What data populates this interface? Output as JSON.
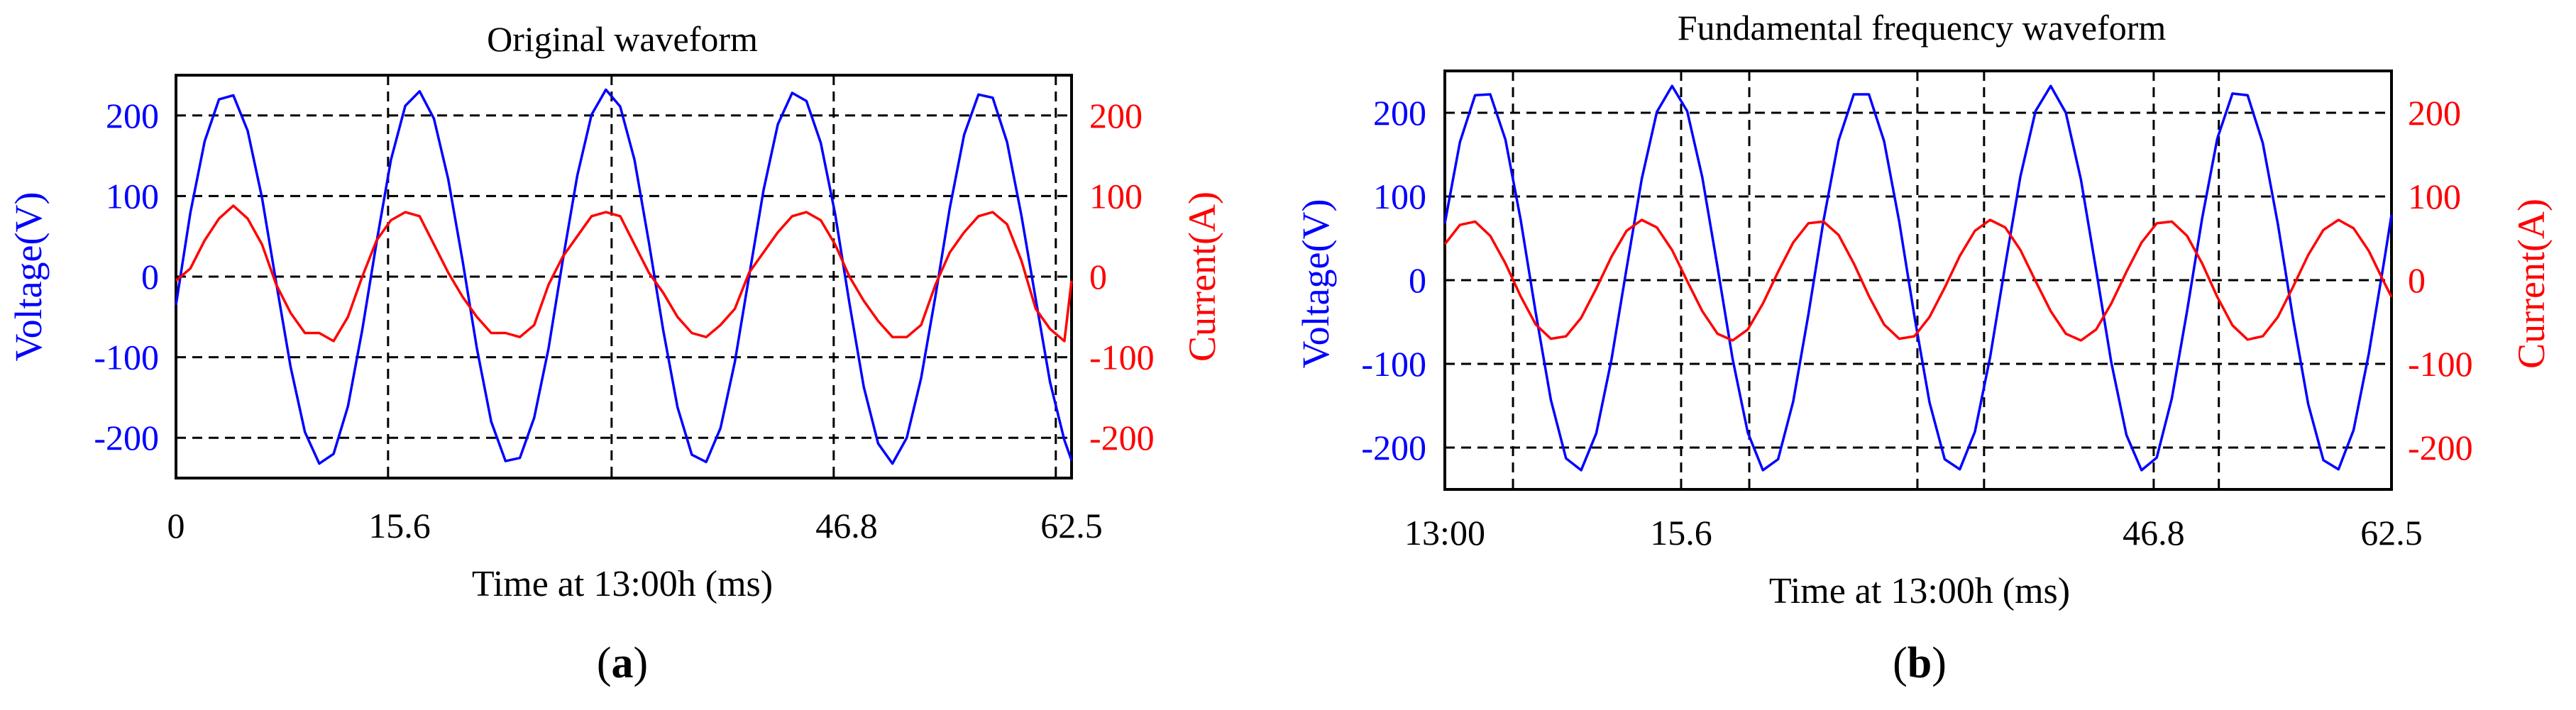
{
  "colors": {
    "voltage": "#0000ff",
    "current": "#ff0000",
    "axis": "#000000",
    "grid": "#000000"
  },
  "chart_data": [
    {
      "type": "line",
      "panel_label": "a",
      "title": "Original waveform",
      "xlabel": "Time at 13:00h (ms)",
      "ylabel_left": "Voltage(V)",
      "ylabel_right": "Current(A)",
      "xlim": [
        0,
        62.5
      ],
      "ylim_left": [
        -250,
        250
      ],
      "ylim_right": [
        -250,
        250
      ],
      "x_ticks": [
        {
          "value": 0,
          "label": "0"
        },
        {
          "value": 15.6,
          "label": "15.6"
        },
        {
          "value": 46.8,
          "label": "46.8"
        },
        {
          "value": 62.5,
          "label": "62.5"
        }
      ],
      "x_gridlines": [
        14.8,
        30.4,
        45.9,
        61.4
      ],
      "y_ticks_left": [
        {
          "value": 200,
          "label": "200"
        },
        {
          "value": 100,
          "label": "100"
        },
        {
          "value": 0,
          "label": "0"
        },
        {
          "value": -100,
          "label": "-100"
        },
        {
          "value": -200,
          "label": "-200"
        }
      ],
      "y_ticks_right": [
        {
          "value": 200,
          "label": "200"
        },
        {
          "value": 100,
          "label": "100"
        },
        {
          "value": 0,
          "label": "0"
        },
        {
          "value": -100,
          "label": "-100"
        },
        {
          "value": -200,
          "label": "-200"
        }
      ],
      "grid": "dashed",
      "series": [
        {
          "name": "Voltage",
          "axis": "left",
          "x": [
            0,
            1.0,
            2.0,
            3.0,
            4.0,
            5.0,
            6.0,
            7.0,
            8.0,
            9.0,
            10.0,
            11.0,
            12.0,
            13.0,
            14.0,
            15.0,
            16.0,
            17.0,
            18.0,
            19.0,
            20.0,
            21.0,
            22.0,
            23.0,
            24.0,
            25.0,
            26.0,
            27.0,
            28.0,
            29.0,
            30.0,
            31.0,
            32.0,
            33.0,
            34.0,
            35.0,
            36.0,
            37.0,
            38.0,
            39.0,
            40.0,
            41.0,
            42.0,
            43.0,
            44.0,
            45.0,
            46.0,
            47.0,
            48.0,
            49.0,
            50.0,
            51.0,
            52.0,
            53.0,
            54.0,
            55.0,
            56.0,
            57.0,
            58.0,
            59.0,
            60.0,
            61.0,
            62.0,
            62.5
          ],
          "values": [
            -35,
            79,
            168,
            220,
            225,
            181,
            98,
            -8,
            -112,
            -193,
            -232,
            -220,
            -161,
            -66,
            43,
            145,
            212,
            230,
            196,
            121,
            20,
            -89,
            -180,
            -229,
            -225,
            -175,
            -89,
            21,
            125,
            201,
            232,
            211,
            145,
            43,
            -66,
            -162,
            -221,
            -230,
            -188,
            -106,
            1,
            107,
            189,
            228,
            218,
            166,
            78,
            -33,
            -137,
            -207,
            -232,
            -200,
            -126,
            -24,
            85,
            176,
            226,
            222,
            167,
            76,
            -28,
            -131,
            -203,
            -228
          ]
        },
        {
          "name": "Current",
          "axis": "right",
          "x": [
            0,
            1.0,
            2.0,
            3.0,
            4.0,
            5.0,
            6.0,
            7.0,
            8.0,
            9.0,
            10.0,
            11.0,
            12.0,
            13.0,
            14.0,
            15.0,
            16.0,
            17.0,
            18.0,
            19.0,
            20.0,
            21.0,
            22.0,
            23.0,
            24.0,
            25.0,
            26.0,
            27.0,
            28.0,
            29.0,
            30.0,
            31.0,
            32.0,
            33.0,
            34.0,
            35.0,
            36.0,
            37.0,
            38.0,
            39.0,
            40.0,
            41.0,
            42.0,
            43.0,
            44.0,
            45.0,
            46.0,
            47.0,
            48.0,
            49.0,
            50.0,
            51.0,
            52.0,
            53.0,
            54.0,
            55.0,
            56.0,
            57.0,
            58.0,
            59.0,
            60.0,
            61.0,
            62.0,
            62.5
          ],
          "values": [
            -5,
            10,
            45,
            72,
            88,
            72,
            40,
            -10,
            -45,
            -70,
            -70,
            -80,
            -50,
            0,
            45,
            70,
            80,
            75,
            40,
            5,
            -25,
            -50,
            -70,
            -70,
            -75,
            -60,
            -10,
            25,
            50,
            75,
            80,
            75,
            40,
            5,
            -20,
            -50,
            -70,
            -75,
            -60,
            -40,
            5,
            30,
            55,
            75,
            80,
            70,
            40,
            0,
            -30,
            -55,
            -75,
            -75,
            -60,
            -10,
            30,
            55,
            75,
            80,
            65,
            20,
            -40,
            -65,
            -80,
            -5
          ]
        }
      ]
    },
    {
      "type": "line",
      "panel_label": "b",
      "title": "Fundamental frequency waveform",
      "xlabel": "Time at 13:00h (ms)",
      "ylabel_left": "Voltage(V)",
      "ylabel_right": "Current(A)",
      "xlim": [
        0,
        62.5
      ],
      "ylim_left": [
        -250,
        250
      ],
      "ylim_right": [
        -250,
        250
      ],
      "x_ticks": [
        {
          "value": 0,
          "label": "13:00"
        },
        {
          "value": 15.6,
          "label": "15.6"
        },
        {
          "value": 46.8,
          "label": "46.8"
        },
        {
          "value": 62.5,
          "label": "62.5"
        }
      ],
      "x_gridlines": [
        15.6,
        31.2,
        46.8
      ],
      "extra_vlines": [
        4.5,
        20.1,
        35.6,
        51.1
      ],
      "y_ticks_left": [
        {
          "value": 200,
          "label": "200"
        },
        {
          "value": 100,
          "label": "100"
        },
        {
          "value": 0,
          "label": "0"
        },
        {
          "value": -100,
          "label": "-100"
        },
        {
          "value": -200,
          "label": "-200"
        }
      ],
      "y_ticks_right": [
        {
          "value": 200,
          "label": "200"
        },
        {
          "value": 100,
          "label": "100"
        },
        {
          "value": 0,
          "label": "0"
        },
        {
          "value": -100,
          "label": "-100"
        },
        {
          "value": -200,
          "label": "-200"
        }
      ],
      "grid": "dashed",
      "series": [
        {
          "name": "Voltage",
          "axis": "left",
          "x": [
            0,
            1.0,
            2.0,
            3.0,
            4.0,
            5.0,
            6.0,
            7.0,
            8.0,
            9.0,
            10.0,
            11.0,
            12.0,
            13.0,
            14.0,
            15.0,
            16.0,
            17.0,
            18.0,
            19.0,
            20.0,
            21.0,
            22.0,
            23.0,
            24.0,
            25.0,
            26.0,
            27.0,
            28.0,
            29.0,
            30.0,
            31.0,
            32.0,
            33.0,
            34.0,
            35.0,
            36.0,
            37.0,
            38.0,
            39.0,
            40.0,
            41.0,
            42.0,
            43.0,
            44.0,
            45.0,
            46.0,
            47.0,
            48.0,
            49.0,
            50.0,
            51.0,
            52.0,
            53.0,
            54.0,
            55.0,
            56.0,
            57.0,
            58.0,
            59.0,
            60.0,
            61.0,
            62.0,
            62.5
          ],
          "values": [
            68,
            165,
            221,
            222,
            168,
            73,
            -39,
            -143,
            -213,
            -227,
            -183,
            -95,
            14,
            121,
            201,
            232,
            202,
            123,
            16,
            -94,
            -182,
            -227,
            -214,
            -145,
            -41,
            71,
            167,
            222,
            222,
            166,
            70,
            -43,
            -146,
            -214,
            -226,
            -181,
            -92,
            18,
            124,
            202,
            232,
            200,
            120,
            12,
            -98,
            -185,
            -227,
            -212,
            -141,
            -37,
            74,
            169,
            223,
            221,
            164,
            67,
            -46,
            -148,
            -215,
            -226,
            -179,
            -88,
            21,
            78
          ]
        },
        {
          "name": "Current",
          "axis": "right",
          "x": [
            0,
            1.0,
            2.0,
            3.0,
            4.0,
            5.0,
            6.0,
            7.0,
            8.0,
            9.0,
            10.0,
            11.0,
            12.0,
            13.0,
            14.0,
            15.0,
            16.0,
            17.0,
            18.0,
            19.0,
            20.0,
            21.0,
            22.0,
            23.0,
            24.0,
            25.0,
            26.0,
            27.0,
            28.0,
            29.0,
            30.0,
            31.0,
            32.0,
            33.0,
            34.0,
            35.0,
            36.0,
            37.0,
            38.0,
            39.0,
            40.0,
            41.0,
            42.0,
            43.0,
            44.0,
            45.0,
            46.0,
            47.0,
            48.0,
            49.0,
            50.0,
            51.0,
            52.0,
            53.0,
            54.0,
            55.0,
            56.0,
            57.0,
            58.0,
            59.0,
            60.0,
            61.0,
            62.0,
            62.5
          ],
          "values": [
            43,
            66,
            70,
            53,
            20,
            -19,
            -53,
            -70,
            -67,
            -45,
            -10,
            28,
            59,
            72,
            63,
            36,
            -1,
            -37,
            -64,
            -72,
            -59,
            -28,
            10,
            45,
            68,
            70,
            54,
            20,
            -19,
            -53,
            -70,
            -67,
            -44,
            -9,
            29,
            59,
            72,
            63,
            36,
            -1,
            -37,
            -64,
            -72,
            -59,
            -28,
            10,
            45,
            68,
            70,
            53,
            20,
            -20,
            -54,
            -71,
            -67,
            -44,
            -8,
            30,
            60,
            72,
            62,
            35,
            -2,
            -20
          ]
        }
      ]
    }
  ]
}
